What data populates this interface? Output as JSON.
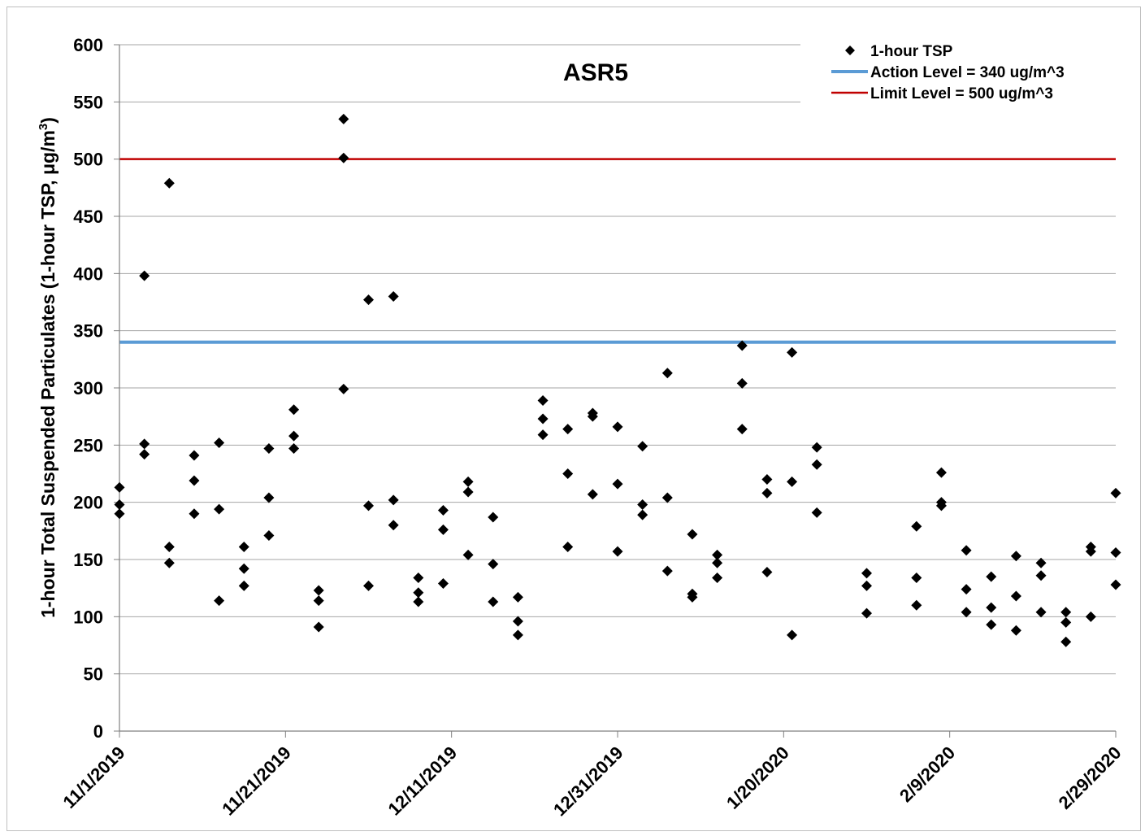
{
  "chart_data": {
    "type": "scatter",
    "title": "ASR5",
    "ylabel_main": "1-hour Total Suspended Particulates (1-hour TSP, μg/m",
    "ylabel_sup": "3",
    "ylabel_end": ")",
    "ylim": [
      0,
      600
    ],
    "yticks": [
      0,
      50,
      100,
      150,
      200,
      250,
      300,
      350,
      400,
      450,
      500,
      550,
      600
    ],
    "xlim": [
      "11/1/2019",
      "2/29/2020"
    ],
    "xticks": [
      "11/1/2019",
      "11/21/2019",
      "12/11/2019",
      "12/31/2019",
      "1/20/2020",
      "2/9/2020",
      "2/29/2020"
    ],
    "grid": "horizontal",
    "legend": {
      "placement": "top-right",
      "entries": [
        {
          "label": "1-hour TSP",
          "symbol": "diamond",
          "color": "#000000"
        },
        {
          "label": "Action Level = 340 ug/m^3",
          "symbol": "line",
          "color": "#5b9bd5"
        },
        {
          "label": "Limit Level = 500 ug/m^3",
          "symbol": "line",
          "color": "#c00000"
        }
      ]
    },
    "reference_lines": [
      {
        "name": "Action Level = 340 ug/m^3",
        "y": 340,
        "color": "#5b9bd5"
      },
      {
        "name": "Limit Level = 500 ug/m^3",
        "y": 500,
        "color": "#c00000"
      }
    ],
    "series": [
      {
        "name": "1-hour TSP",
        "color": "#000000",
        "points": [
          [
            "11/1/2019",
            213
          ],
          [
            "11/1/2019",
            198
          ],
          [
            "11/1/2019",
            190
          ],
          [
            "11/4/2019",
            398
          ],
          [
            "11/4/2019",
            251
          ],
          [
            "11/4/2019",
            242
          ],
          [
            "11/7/2019",
            479
          ],
          [
            "11/7/2019",
            161
          ],
          [
            "11/7/2019",
            147
          ],
          [
            "11/10/2019",
            241
          ],
          [
            "11/10/2019",
            219
          ],
          [
            "11/10/2019",
            190
          ],
          [
            "11/13/2019",
            252
          ],
          [
            "11/13/2019",
            194
          ],
          [
            "11/13/2019",
            114
          ],
          [
            "11/16/2019",
            161
          ],
          [
            "11/16/2019",
            142
          ],
          [
            "11/16/2019",
            127
          ],
          [
            "11/19/2019",
            247
          ],
          [
            "11/19/2019",
            204
          ],
          [
            "11/19/2019",
            171
          ],
          [
            "11/22/2019",
            281
          ],
          [
            "11/22/2019",
            258
          ],
          [
            "11/22/2019",
            247
          ],
          [
            "11/25/2019",
            123
          ],
          [
            "11/25/2019",
            114
          ],
          [
            "11/25/2019",
            91
          ],
          [
            "11/28/2019",
            535
          ],
          [
            "11/28/2019",
            501
          ],
          [
            "11/28/2019",
            299
          ],
          [
            "12/1/2019",
            377
          ],
          [
            "12/1/2019",
            197
          ],
          [
            "12/1/2019",
            127
          ],
          [
            "12/4/2019",
            380
          ],
          [
            "12/4/2019",
            202
          ],
          [
            "12/4/2019",
            180
          ],
          [
            "12/7/2019",
            134
          ],
          [
            "12/7/2019",
            121
          ],
          [
            "12/7/2019",
            113
          ],
          [
            "12/10/2019",
            193
          ],
          [
            "12/10/2019",
            176
          ],
          [
            "12/10/2019",
            129
          ],
          [
            "12/13/2019",
            218
          ],
          [
            "12/13/2019",
            209
          ],
          [
            "12/13/2019",
            154
          ],
          [
            "12/16/2019",
            187
          ],
          [
            "12/16/2019",
            146
          ],
          [
            "12/16/2019",
            113
          ],
          [
            "12/19/2019",
            117
          ],
          [
            "12/19/2019",
            96
          ],
          [
            "12/19/2019",
            84
          ],
          [
            "12/22/2019",
            289
          ],
          [
            "12/22/2019",
            273
          ],
          [
            "12/22/2019",
            259
          ],
          [
            "12/25/2019",
            264
          ],
          [
            "12/25/2019",
            225
          ],
          [
            "12/25/2019",
            161
          ],
          [
            "12/28/2019",
            278
          ],
          [
            "12/28/2019",
            275
          ],
          [
            "12/28/2019",
            207
          ],
          [
            "12/31/2019",
            266
          ],
          [
            "12/31/2019",
            216
          ],
          [
            "12/31/2019",
            157
          ],
          [
            "1/3/2020",
            249
          ],
          [
            "1/3/2020",
            198
          ],
          [
            "1/3/2020",
            189
          ],
          [
            "1/6/2020",
            313
          ],
          [
            "1/6/2020",
            204
          ],
          [
            "1/6/2020",
            140
          ],
          [
            "1/9/2020",
            172
          ],
          [
            "1/9/2020",
            120
          ],
          [
            "1/9/2020",
            117
          ],
          [
            "1/12/2020",
            154
          ],
          [
            "1/12/2020",
            147
          ],
          [
            "1/12/2020",
            134
          ],
          [
            "1/15/2020",
            337
          ],
          [
            "1/15/2020",
            304
          ],
          [
            "1/15/2020",
            264
          ],
          [
            "1/18/2020",
            220
          ],
          [
            "1/18/2020",
            208
          ],
          [
            "1/18/2020",
            139
          ],
          [
            "1/21/2020",
            331
          ],
          [
            "1/21/2020",
            218
          ],
          [
            "1/21/2020",
            84
          ],
          [
            "1/24/2020",
            248
          ],
          [
            "1/24/2020",
            233
          ],
          [
            "1/24/2020",
            191
          ],
          [
            "1/30/2020",
            138
          ],
          [
            "1/30/2020",
            127
          ],
          [
            "1/30/2020",
            103
          ],
          [
            "2/5/2020",
            179
          ],
          [
            "2/5/2020",
            134
          ],
          [
            "2/5/2020",
            110
          ],
          [
            "2/8/2020",
            226
          ],
          [
            "2/8/2020",
            200
          ],
          [
            "2/8/2020",
            197
          ],
          [
            "2/11/2020",
            158
          ],
          [
            "2/11/2020",
            124
          ],
          [
            "2/11/2020",
            104
          ],
          [
            "2/14/2020",
            135
          ],
          [
            "2/14/2020",
            108
          ],
          [
            "2/14/2020",
            93
          ],
          [
            "2/17/2020",
            153
          ],
          [
            "2/17/2020",
            118
          ],
          [
            "2/17/2020",
            88
          ],
          [
            "2/20/2020",
            147
          ],
          [
            "2/20/2020",
            136
          ],
          [
            "2/20/2020",
            104
          ],
          [
            "2/23/2020",
            104
          ],
          [
            "2/23/2020",
            95
          ],
          [
            "2/23/2020",
            78
          ],
          [
            "2/26/2020",
            161
          ],
          [
            "2/26/2020",
            157
          ],
          [
            "2/26/2020",
            100
          ],
          [
            "2/29/2020",
            208
          ],
          [
            "2/29/2020",
            156
          ],
          [
            "2/29/2020",
            128
          ]
        ]
      }
    ]
  }
}
